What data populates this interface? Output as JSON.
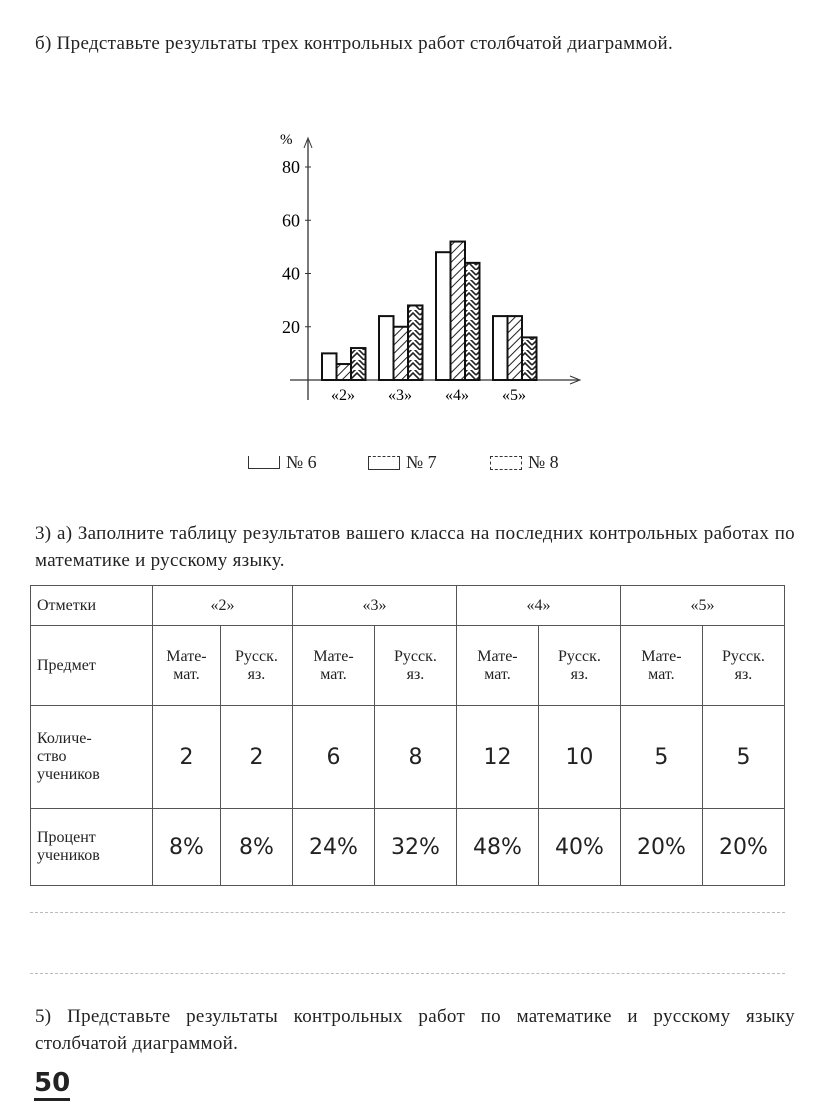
{
  "task_b": {
    "text": "б) Представьте результаты трех контрольных работ столбчатой диаграммой."
  },
  "chart_data": {
    "type": "bar",
    "ylabel": "%",
    "ylim": [
      0,
      85
    ],
    "yticks": [
      20,
      40,
      60,
      80
    ],
    "categories": [
      "«2»",
      "«3»",
      "«4»",
      "«5»"
    ],
    "series": [
      {
        "name": "№ 6",
        "pattern": "empty",
        "values": [
          10,
          24,
          48,
          24
        ]
      },
      {
        "name": "№ 7",
        "pattern": "diagonal-hatch",
        "values": [
          6,
          20,
          52,
          24
        ]
      },
      {
        "name": "№ 8",
        "pattern": "herringbone-hatch",
        "values": [
          12,
          28,
          44,
          16
        ]
      }
    ],
    "grid": false,
    "legend": "bottom"
  },
  "task_3a": {
    "text": "3) а) Заполните таблицу результатов вашего класса на последних контрольных работах по математике и русскому языку."
  },
  "table": {
    "marks_label": "Отметки",
    "marks": [
      "«2»",
      "«3»",
      "«4»",
      "«5»"
    ],
    "subject_label": "Предмет",
    "subjects": [
      [
        "Мате-",
        "мат."
      ],
      [
        "Русск.",
        "яз."
      ]
    ],
    "count_label": [
      "Количе-",
      "ство",
      "учеников"
    ],
    "counts": [
      "2",
      "2",
      "6",
      "8",
      "12",
      "10",
      "5",
      "5"
    ],
    "percent_label": [
      "Процент",
      "учеников"
    ],
    "percents": [
      "8%",
      "8%",
      "24%",
      "32%",
      "48%",
      "40%",
      "20%",
      "20%"
    ]
  },
  "task_5": {
    "text": "5) Представьте результаты контрольных работ по математике и русскому языку столбчатой диаграммой."
  },
  "page_number": "50"
}
